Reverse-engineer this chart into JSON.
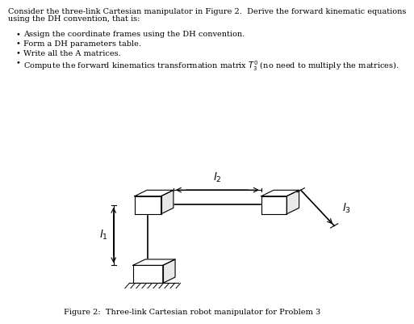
{
  "title_line1": "Consider the three-link Cartesian manipulator in Figure 2.  Derive the forward kinematic equations",
  "title_line2": "using the DH convention, that is:",
  "bullets": [
    "Assign the coordinate frames using the DH convention.",
    "Form a DH parameters table.",
    "Write all the A matrices.",
    "Compute the forward kinematics transformation matrix $T_3^0$ (no need to multiply the matrices)."
  ],
  "caption": "Figure 2:  Three-link Cartesian robot manipulator for Problem 3",
  "bg_color": "#ffffff",
  "text_color": "#000000",
  "font_size_body": 7.0,
  "font_size_caption": 7.0,
  "font_size_label": 9.5
}
